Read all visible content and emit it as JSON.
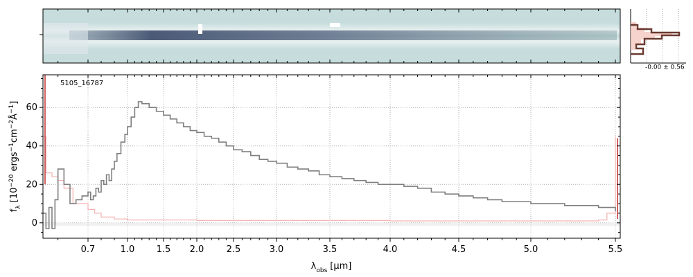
{
  "chart_data": [
    {
      "type": "heatmap",
      "panel": "2d-spectrum",
      "description_colors": {
        "background": "#c7dcdc",
        "trace": "#4a5a78",
        "edge": "#ffffff"
      }
    },
    {
      "type": "line",
      "panel": "1d-spectrum",
      "label": "5105_16787",
      "xlabel_main": "λ",
      "xlabel_sub": "obs",
      "xlabel_unit": "[μm]",
      "ylabel": "f_λ [10^-20 ergs^-1 cm^-2 Å^-1]",
      "ylabel_parts": {
        "f": "f",
        "sub": "λ",
        "a": " [10",
        "e1": "−20",
        "b": " ergs",
        "e2": "−1",
        "c": "cm",
        "e3": "−2",
        "d": "Å",
        "e4": "−1",
        "end": "]"
      },
      "ylim": [
        -8,
        77
      ],
      "yticks": [
        0,
        20,
        40,
        60
      ],
      "xticks": [
        {
          "label": "0.7",
          "v": 0.7
        },
        {
          "label": "1.0",
          "v": 1.0
        },
        {
          "label": "1.5",
          "v": 1.5
        },
        {
          "label": "2.0",
          "v": 2.0
        },
        {
          "label": "2.5",
          "v": 2.5
        },
        {
          "label": "3.0",
          "v": 3.0
        },
        {
          "label": "3.5",
          "v": 3.5
        },
        {
          "label": "4.0",
          "v": 4.0
        },
        {
          "label": "4.5",
          "v": 4.5
        },
        {
          "label": "5.0",
          "v": 5.0
        },
        {
          "label": "5.5",
          "v": 5.5
        }
      ],
      "grid": true,
      "colors": {
        "flux": "#7f7f7f",
        "error": "#f5b5b5",
        "edge": "#c03030"
      },
      "series": [
        {
          "role": "flux",
          "x": [
            0.55,
            0.56,
            0.57,
            0.58,
            0.59,
            0.6,
            0.62,
            0.64,
            0.66,
            0.68,
            0.7,
            0.72,
            0.74,
            0.76,
            0.78,
            0.8,
            0.82,
            0.84,
            0.86,
            0.88,
            0.9,
            0.92,
            0.95,
            0.98,
            1.0,
            1.05,
            1.1,
            1.15,
            1.2,
            1.3,
            1.4,
            1.5,
            1.6,
            1.7,
            1.8,
            1.9,
            2.0,
            2.1,
            2.2,
            2.3,
            2.4,
            2.5,
            2.6,
            2.7,
            2.8,
            2.9,
            3.0,
            3.1,
            3.2,
            3.3,
            3.4,
            3.5,
            3.6,
            3.7,
            3.8,
            3.9,
            4.0,
            4.1,
            4.2,
            4.3,
            4.4,
            4.5,
            4.6,
            4.7,
            4.8,
            4.9,
            5.0,
            5.1,
            5.2,
            5.3,
            5.4,
            5.45,
            5.5
          ],
          "values": [
            5,
            -3,
            8,
            -3,
            12,
            28,
            20,
            10,
            12,
            14,
            16,
            12,
            14,
            18,
            16,
            22,
            20,
            25,
            22,
            28,
            32,
            36,
            42,
            46,
            50,
            55,
            60,
            63,
            62,
            60,
            58,
            56,
            54,
            52,
            50,
            48,
            47,
            45,
            44,
            42,
            40,
            38,
            37,
            35,
            33,
            32,
            31,
            29,
            28,
            27,
            25,
            24,
            23,
            22,
            21,
            20,
            20,
            19,
            18,
            16,
            15,
            14,
            13,
            12,
            11,
            11,
            10,
            10,
            9,
            9,
            8,
            8,
            6
          ]
        },
        {
          "role": "error",
          "x": [
            0.55,
            0.56,
            0.58,
            0.6,
            0.62,
            0.65,
            0.7,
            0.75,
            0.8,
            0.9,
            1.0,
            1.5,
            2.0,
            3.0,
            4.0,
            5.0,
            5.4,
            5.45,
            5.5
          ],
          "values": [
            45,
            26,
            24,
            22,
            18,
            10,
            7,
            5,
            3,
            2,
            1.5,
            1.5,
            1.2,
            1.2,
            1.0,
            1.0,
            1.5,
            5,
            45
          ]
        }
      ]
    },
    {
      "type": "bar",
      "panel": "side-histogram",
      "annotation": "-0.00 ± 0.56"
    }
  ]
}
